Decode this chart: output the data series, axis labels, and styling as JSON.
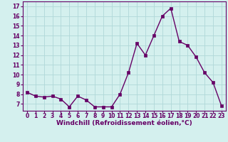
{
  "x": [
    0,
    1,
    2,
    3,
    4,
    5,
    6,
    7,
    8,
    9,
    10,
    11,
    12,
    13,
    14,
    15,
    16,
    17,
    18,
    19,
    20,
    21,
    22,
    23
  ],
  "y": [
    8.2,
    7.8,
    7.7,
    7.8,
    7.5,
    6.7,
    7.8,
    7.4,
    6.7,
    6.7,
    6.7,
    8.0,
    10.2,
    13.2,
    12.0,
    14.0,
    16.0,
    16.8,
    13.4,
    13.0,
    11.8,
    10.2,
    9.2,
    6.8
  ],
  "line_color": "#660066",
  "marker_color": "#660066",
  "bg_color": "#d4f0ee",
  "grid_color": "#b0d8d8",
  "xlabel": "Windchill (Refroidissement éolien,°C)",
  "xlabel_color": "#660066",
  "ylim": [
    6.3,
    17.5
  ],
  "xlim": [
    -0.5,
    23.5
  ],
  "yticks": [
    7,
    8,
    9,
    10,
    11,
    12,
    13,
    14,
    15,
    16,
    17
  ],
  "xticks": [
    0,
    1,
    2,
    3,
    4,
    5,
    6,
    7,
    8,
    9,
    10,
    11,
    12,
    13,
    14,
    15,
    16,
    17,
    18,
    19,
    20,
    21,
    22,
    23
  ],
  "tick_color": "#660066",
  "tick_fontsize": 5.5,
  "xlabel_fontsize": 6.5,
  "line_width": 1.0,
  "marker_size": 2.5,
  "spine_color": "#660066"
}
